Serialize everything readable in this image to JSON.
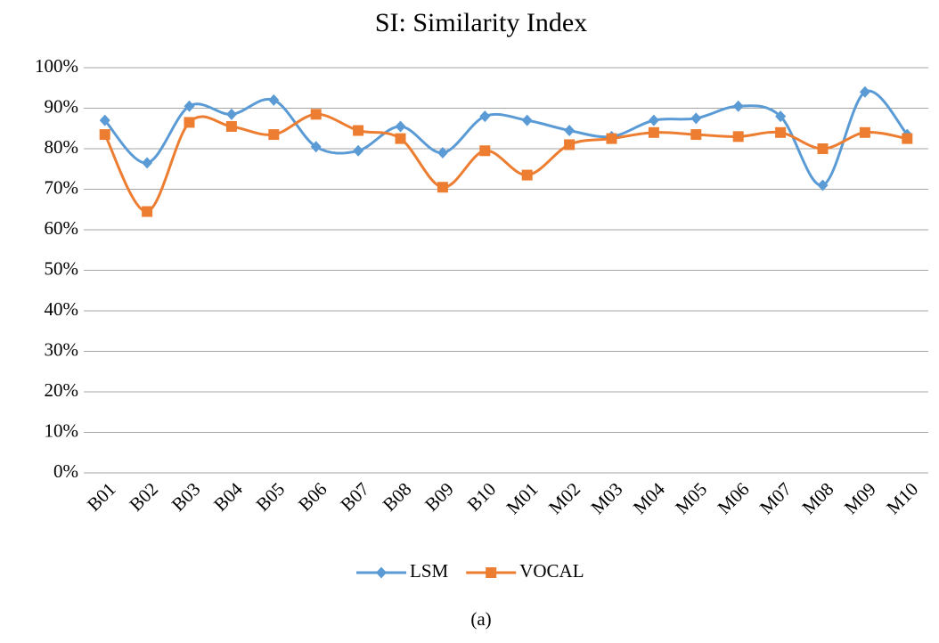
{
  "chart_data": {
    "type": "line",
    "title": "SI: Similarity Index",
    "caption": "(a)",
    "categories": [
      "B01",
      "B02",
      "B03",
      "B04",
      "B05",
      "B06",
      "B07",
      "B08",
      "B09",
      "B10",
      "M01",
      "M02",
      "M03",
      "M04",
      "M05",
      "M06",
      "M07",
      "M08",
      "M09",
      "M10"
    ],
    "series": [
      {
        "name": "LSM",
        "color": "#5b9bd5",
        "marker": "diamond",
        "values": [
          87,
          76.5,
          90.5,
          88.5,
          92,
          80.5,
          79.5,
          85.5,
          79,
          88,
          87,
          84.5,
          83,
          87,
          87.5,
          90.5,
          88,
          71,
          94,
          83.5
        ]
      },
      {
        "name": "VOCAL",
        "color": "#ed7d31",
        "marker": "square",
        "values": [
          83.5,
          64.5,
          86.5,
          85.5,
          83.5,
          88.5,
          84.5,
          82.5,
          70.5,
          79.5,
          73.5,
          81,
          82.5,
          84,
          83.5,
          83,
          84,
          80,
          84,
          82.5
        ]
      }
    ],
    "smooth": true,
    "ylim": [
      0,
      100
    ],
    "yticks": [
      {
        "value": 0,
        "label": "0%"
      },
      {
        "value": 10,
        "label": "10%"
      },
      {
        "value": 20,
        "label": "20%"
      },
      {
        "value": 30,
        "label": "30%"
      },
      {
        "value": 40,
        "label": "40%"
      },
      {
        "value": 50,
        "label": "50%"
      },
      {
        "value": 60,
        "label": "60%"
      },
      {
        "value": 70,
        "label": "70%"
      },
      {
        "value": 80,
        "label": "80%"
      },
      {
        "value": 90,
        "label": "90%"
      },
      {
        "value": 100,
        "label": "100%"
      }
    ],
    "grid": true,
    "legend": "bottom"
  }
}
